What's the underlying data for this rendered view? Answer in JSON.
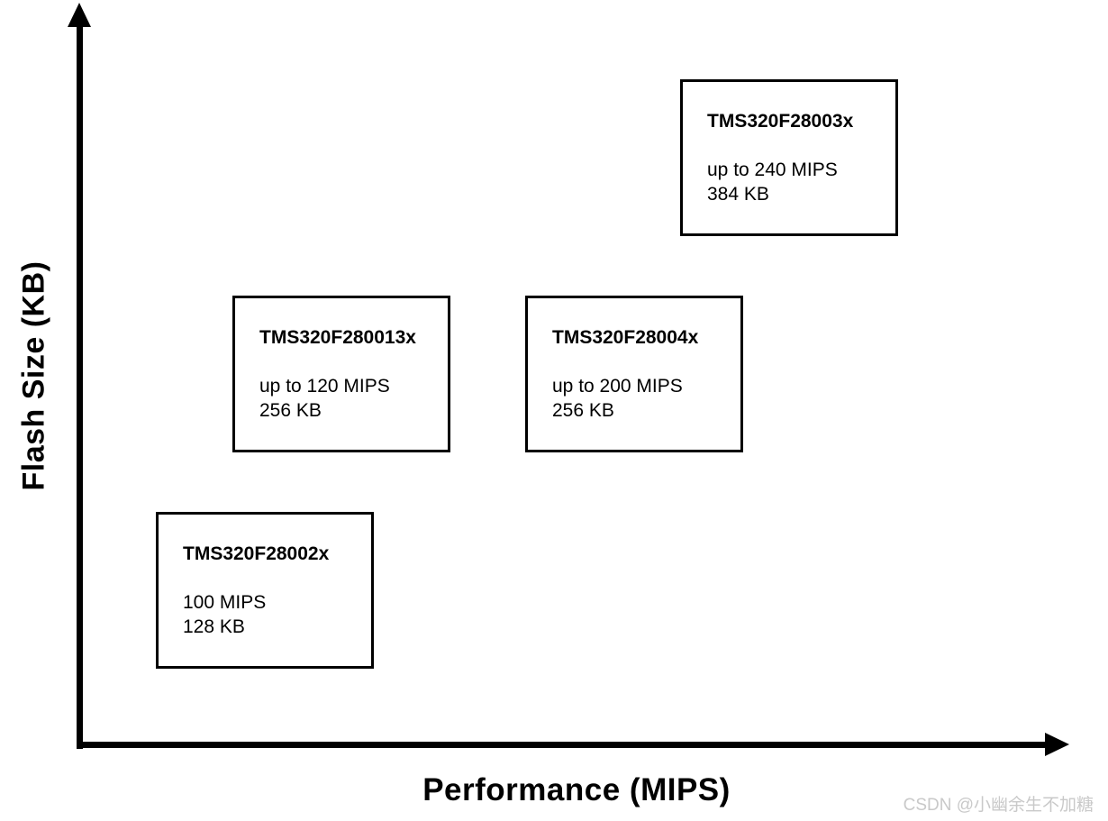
{
  "diagram": {
    "y_axis_label": "Flash Size (KB)",
    "x_axis_label": "Performance (MIPS)",
    "nodes": [
      {
        "model": "TMS320F28003x",
        "performance": "up to 240 MIPS",
        "flash": "384 KB"
      },
      {
        "model": "TMS320F280013x",
        "performance": "up to 120 MIPS",
        "flash": "256 KB"
      },
      {
        "model": "TMS320F28004x",
        "performance": "up to 200 MIPS",
        "flash": "256 KB"
      },
      {
        "model": "TMS320F28002x",
        "performance": "100 MIPS",
        "flash": "128 KB"
      }
    ],
    "watermark": "CSDN @小幽余生不加糖"
  },
  "colors": {
    "foreground": "#000000",
    "background": "#ffffff",
    "watermark": "#c9c9c9"
  }
}
